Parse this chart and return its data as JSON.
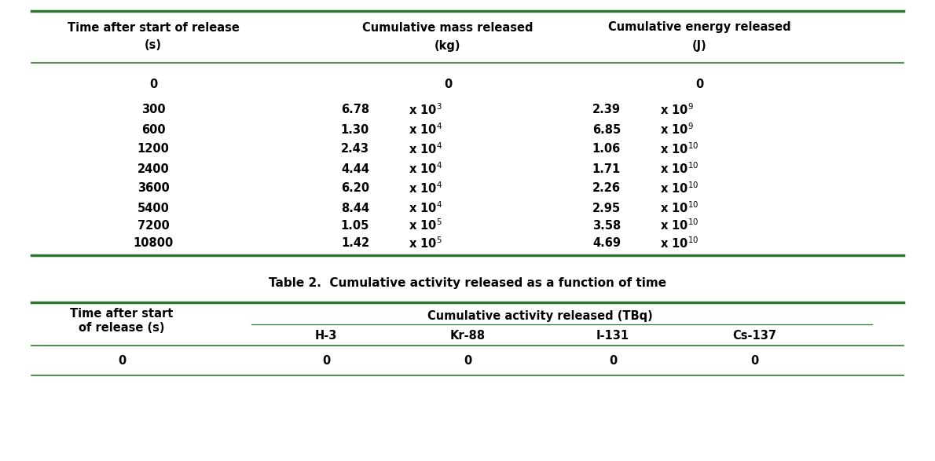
{
  "table1_col_headers_line1": [
    "Time after start of release",
    "Cumulative mass released",
    "Cumulative energy released"
  ],
  "table1_col_headers_line2": [
    "(s)",
    "(kg)",
    "(J)"
  ],
  "table1_rows": [
    {
      "time": "0",
      "mass_m": "",
      "mass_e": "",
      "energy_m": "",
      "energy_e": ""
    },
    {
      "time": "300",
      "mass_m": "6.78",
      "mass_e": "3",
      "energy_m": "2.39",
      "energy_e": "9"
    },
    {
      "time": "600",
      "mass_m": "1.30",
      "mass_e": "4",
      "energy_m": "6.85",
      "energy_e": "9"
    },
    {
      "time": "1200",
      "mass_m": "2.43",
      "mass_e": "4",
      "energy_m": "1.06",
      "energy_e": "10"
    },
    {
      "time": "2400",
      "mass_m": "4.44",
      "mass_e": "4",
      "energy_m": "1.71",
      "energy_e": "10"
    },
    {
      "time": "3600",
      "mass_m": "6.20",
      "mass_e": "4",
      "energy_m": "2.26",
      "energy_e": "10"
    },
    {
      "time": "5400",
      "mass_m": "8.44",
      "mass_e": "4",
      "energy_m": "2.95",
      "energy_e": "10"
    },
    {
      "time": "7200",
      "mass_m": "1.05",
      "mass_e": "5",
      "energy_m": "3.58",
      "energy_e": "10"
    },
    {
      "time": "10800",
      "mass_m": "1.42",
      "mass_e": "5",
      "energy_m": "4.69",
      "energy_e": "10"
    }
  ],
  "table1_row0_time": "0",
  "table2_title": "Table 2.  Cumulative activity released as a function of time",
  "table2_subheader": "Cumulative activity released (TBq)",
  "table2_col0_line1": "Time after start",
  "table2_col0_line2": "of release (s)",
  "table2_sub_cols": [
    "H-3",
    "Kr-88",
    "I-131",
    "Cs-137"
  ],
  "table2_row0": [
    "0",
    "0",
    "0",
    "0",
    "0"
  ],
  "line_color": "#2d7a2d",
  "bg_color": "#ffffff",
  "text_color": "#000000",
  "font_size": 10.5,
  "font_weight": "bold"
}
